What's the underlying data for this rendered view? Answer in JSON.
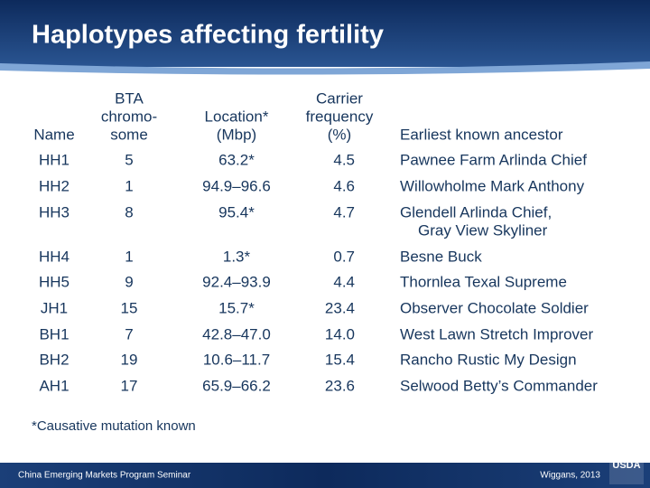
{
  "header": {
    "title": "Haplotypes affecting fertility"
  },
  "table": {
    "columns": [
      [
        "Name"
      ],
      [
        "BTA",
        "chromo-",
        "some"
      ],
      [
        "Location*",
        "(Mbp)"
      ],
      [
        "Carrier",
        "frequency",
        "(%)"
      ],
      [
        "Earliest known ancestor"
      ]
    ],
    "rows": [
      [
        "HH1",
        "5",
        "63.2*",
        "4.5",
        [
          "Pawnee Farm Arlinda Chief"
        ]
      ],
      [
        "HH2",
        "1",
        "94.9–96.6",
        "4.6",
        [
          "Willowholme Mark Anthony"
        ]
      ],
      [
        "HH3",
        "8",
        "95.4*",
        "4.7",
        [
          "Glendell Arlinda Chief,",
          "Gray View Skyliner"
        ]
      ],
      [
        "HH4",
        "1",
        "1.3*",
        "0.7",
        [
          "Besne Buck"
        ]
      ],
      [
        "HH5",
        "9",
        "92.4–93.9",
        "4.4",
        [
          "Thornlea Texal Supreme"
        ]
      ],
      [
        "JH1",
        "15",
        "15.7*",
        "23.4",
        [
          "Observer Chocolate Soldier"
        ]
      ],
      [
        "BH1",
        "7",
        "42.8–47.0",
        "14.0",
        [
          "West Lawn Stretch Improver"
        ]
      ],
      [
        "BH2",
        "19",
        "10.6–11.7",
        "15.4",
        [
          "Rancho Rustic My Design"
        ]
      ],
      [
        "AH1",
        "17",
        "65.9–66.2",
        "23.6",
        [
          "Selwood Betty’s Commander"
        ]
      ]
    ]
  },
  "footnote": "*Causative mutation known",
  "footer": {
    "left": "China Emerging Markets Program Seminar",
    "right": "Wiggans, 2013",
    "logo": "USDA"
  }
}
